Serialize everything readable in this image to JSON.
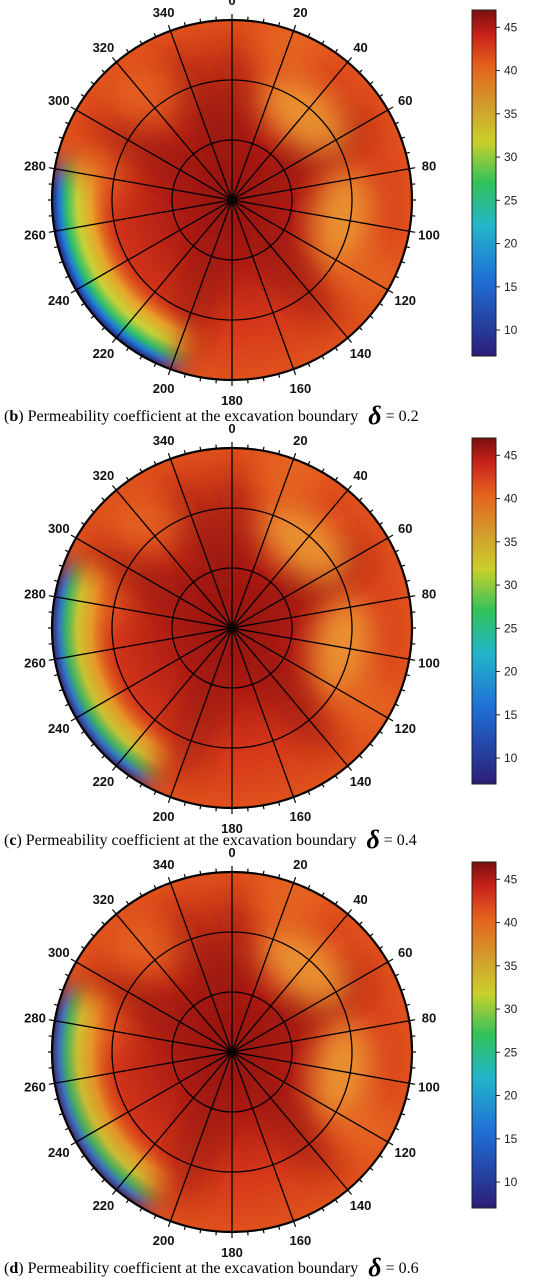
{
  "colors": {
    "low": "#2b1e78",
    "mid": "#31c25a",
    "high": "#d39e2c",
    "max": "#7a0f0f",
    "grid": "#000000"
  },
  "chart_data": [
    {
      "type": "polar-contour",
      "panel": "b",
      "caption_label": "b",
      "caption_text": "Permeability coefficient at the excavation boundary",
      "caption_symbol": "δ",
      "caption_value": "= 0.2",
      "delta": 0.2,
      "angles": [
        0,
        20,
        40,
        60,
        80,
        100,
        120,
        140,
        160,
        180,
        200,
        220,
        240,
        260,
        280,
        300,
        320,
        340
      ],
      "angle_labels": [
        "0",
        "20",
        "40",
        "60",
        "80",
        "100",
        "120",
        "140",
        "160",
        "180",
        "200",
        "220",
        "240",
        "260",
        "280",
        "300",
        "320",
        "340"
      ],
      "colorbar": {
        "min": 7,
        "max": 47,
        "ticks": [
          10,
          15,
          20,
          25,
          30,
          35,
          40,
          45
        ],
        "tick_labels": [
          "10",
          "15",
          "20",
          "25",
          "30",
          "35",
          "40",
          "45"
        ]
      },
      "features": {
        "low_zone_deg": 240,
        "low_zone_strength": 1.0,
        "light_lobes_deg": [
          40,
          100
        ]
      }
    },
    {
      "type": "polar-contour",
      "panel": "c",
      "caption_label": "c",
      "caption_text": "Permeability coefficient at the excavation boundary",
      "caption_symbol": "δ",
      "caption_value": "= 0.4",
      "delta": 0.4,
      "angles": [
        0,
        20,
        40,
        60,
        80,
        100,
        120,
        140,
        160,
        180,
        200,
        220,
        240,
        260,
        280,
        300,
        320,
        340
      ],
      "angle_labels": [
        "0",
        "20",
        "40",
        "60",
        "80",
        "100",
        "120",
        "140",
        "160",
        "180",
        "200",
        "220",
        "240",
        "260",
        "280",
        "300",
        "320",
        "340"
      ],
      "colorbar": {
        "min": 7,
        "max": 47,
        "ticks": [
          10,
          15,
          20,
          25,
          30,
          35,
          40,
          45
        ],
        "tick_labels": [
          "10",
          "15",
          "20",
          "25",
          "30",
          "35",
          "40",
          "45"
        ]
      },
      "features": {
        "low_zone_deg": 250,
        "low_zone_strength": 0.9,
        "light_lobes_deg": [
          40,
          100
        ]
      }
    },
    {
      "type": "polar-contour",
      "panel": "d",
      "caption_label": "d",
      "caption_text": "Permeability coefficient at the excavation boundary",
      "caption_symbol": "δ",
      "caption_value": "= 0.6",
      "delta": 0.6,
      "angles": [
        0,
        20,
        40,
        60,
        80,
        100,
        120,
        140,
        160,
        180,
        200,
        220,
        240,
        260,
        280,
        300,
        320,
        340
      ],
      "angle_labels": [
        "0",
        "20",
        "40",
        "60",
        "80",
        "100",
        "120",
        "140",
        "160",
        "180",
        "200",
        "220",
        "240",
        "260",
        "280",
        "300",
        "320",
        "340"
      ],
      "colorbar": {
        "min": 7,
        "max": 47,
        "ticks": [
          10,
          15,
          20,
          25,
          30,
          35,
          40,
          45
        ],
        "tick_labels": [
          "10",
          "15",
          "20",
          "25",
          "30",
          "35",
          "40",
          "45"
        ]
      },
      "features": {
        "low_zone_deg": 250,
        "low_zone_strength": 0.85,
        "light_lobes_deg": [
          40,
          100
        ]
      }
    }
  ]
}
